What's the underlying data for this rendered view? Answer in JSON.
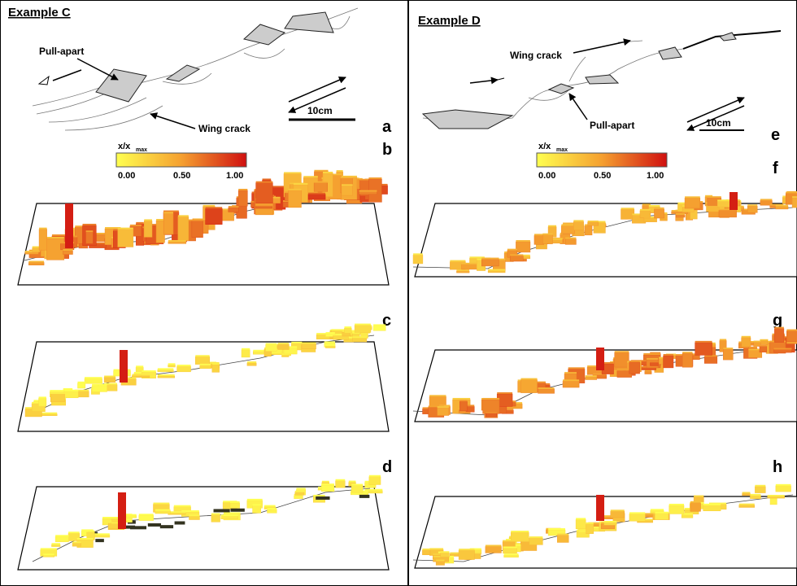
{
  "panels": [
    {
      "title": "Example C",
      "pull_apart": "Pull-apart",
      "wing_crack": "Wing crack",
      "scale": "10cm",
      "letters": [
        "a",
        "b",
        "c",
        "d"
      ],
      "colorbar": {
        "label": "x/x",
        "subscript": "max",
        "ticks": [
          "0.00",
          "0.50",
          "1.00"
        ]
      }
    },
    {
      "title": "Example D",
      "pull_apart": "Pull-apart",
      "wing_crack": "Wing crack",
      "scale": "10cm",
      "letters": [
        "e",
        "f",
        "g",
        "h"
      ],
      "colorbar": {
        "label": "x/x",
        "subscript": "max",
        "ticks": [
          "0.00",
          "0.50",
          "1.00"
        ]
      }
    }
  ]
}
